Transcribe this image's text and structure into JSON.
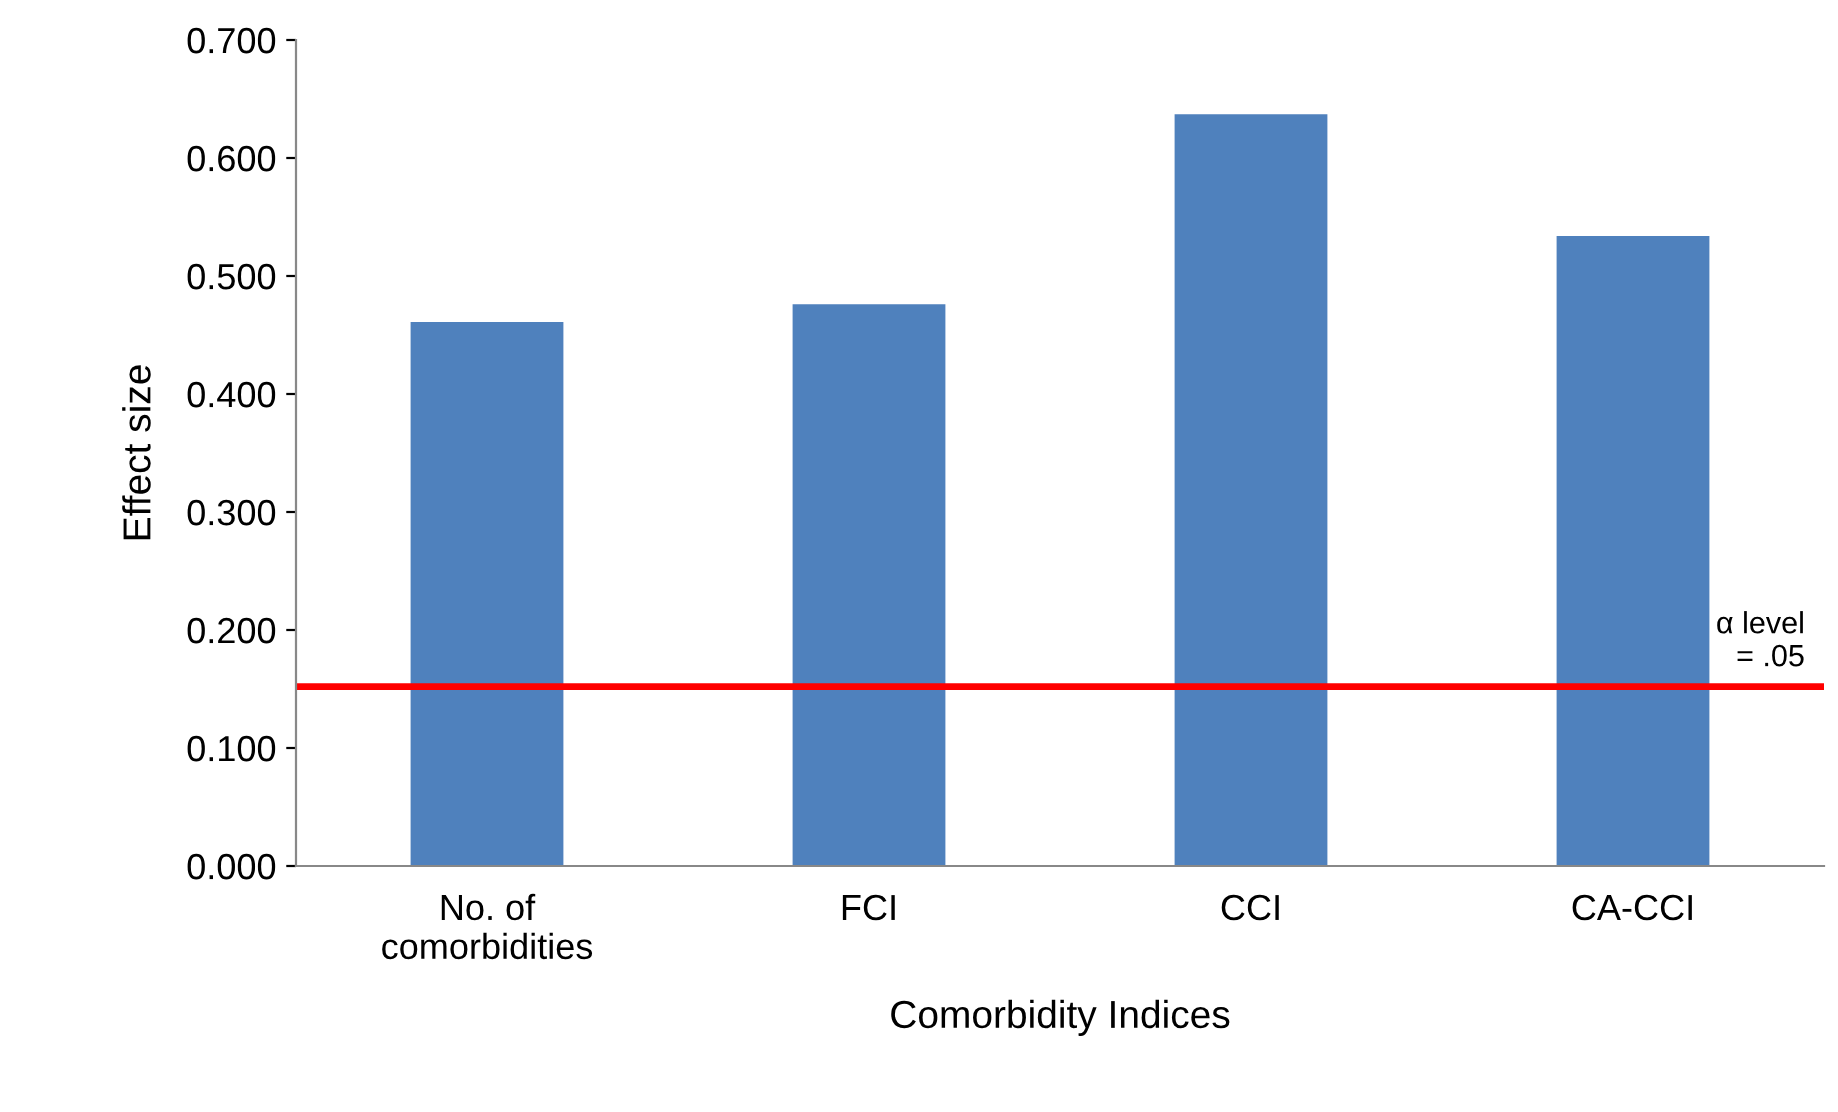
{
  "chart_data": {
    "type": "bar",
    "xlabel": "Comorbidity Indices",
    "ylabel": "Effect size",
    "categories": [
      "No. of\ncomorbidities",
      "FCI",
      "CCI",
      "CA-CCI"
    ],
    "series": [
      {
        "color": "#4f81bd",
        "values": [
          0.461,
          0.476,
          0.637,
          0.534
        ]
      }
    ],
    "ylim": [
      0,
      0.7
    ],
    "yticks": [
      {
        "value": 0,
        "label": "0.000"
      },
      {
        "value": 0.1,
        "label": "0.100"
      },
      {
        "value": 0.2,
        "label": "0.200"
      },
      {
        "value": 0.3,
        "label": "0.300"
      },
      {
        "value": 0.4,
        "label": "0.400"
      },
      {
        "value": 0.5,
        "label": "0.500"
      },
      {
        "value": 0.6,
        "label": "0.600"
      },
      {
        "value": 0.7,
        "label": "0.700"
      }
    ],
    "ref_lines": [
      {
        "axis": "y",
        "value": 0.152,
        "label": "α level\n= .05",
        "color": "#ff0000",
        "line_style": "solid"
      }
    ],
    "grid": false,
    "legend": false
  }
}
